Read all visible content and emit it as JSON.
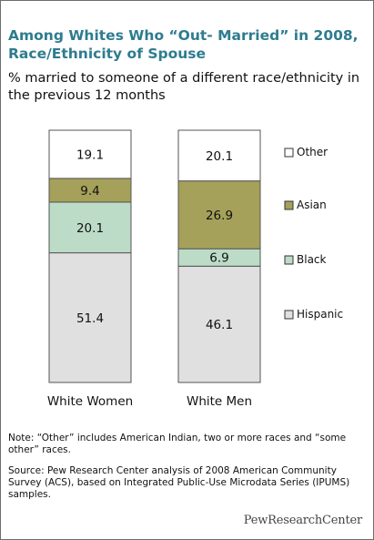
{
  "title": "Among Whites Who “Out- Married” in 2008, Race/Ethnicity of Spouse",
  "subtitle": "% married to someone of a different race/ethnicity in the previous 12 months",
  "note": "Note: “Other” includes American Indian, two or more races and “some other” races.",
  "source": "Source: Pew Research Center analysis of 2008 American Community Survey (ACS), based on Integrated Public-Use Microdata Series (IPUMS) samples.",
  "brand": "PewResearchCenter",
  "colors": {
    "Hispanic": "#e0e0e0",
    "Black": "#bcdcc8",
    "Asian": "#a5a15a",
    "Other": "#ffffff",
    "bar_stroke": "#555555",
    "title": "#2e7c8f"
  },
  "chart_data": {
    "type": "bar",
    "stacked": true,
    "categories": [
      "White Women",
      "White Men"
    ],
    "series": [
      {
        "name": "Hispanic",
        "values": [
          51.4,
          46.1
        ]
      },
      {
        "name": "Black",
        "values": [
          20.1,
          6.9
        ]
      },
      {
        "name": "Asian",
        "values": [
          9.4,
          26.9
        ]
      },
      {
        "name": "Other",
        "values": [
          19.1,
          20.1
        ]
      }
    ],
    "legend_order": [
      "Other",
      "Asian",
      "Black",
      "Hispanic"
    ],
    "legend_position": "right",
    "ylim": [
      0,
      100
    ],
    "grid": false
  }
}
